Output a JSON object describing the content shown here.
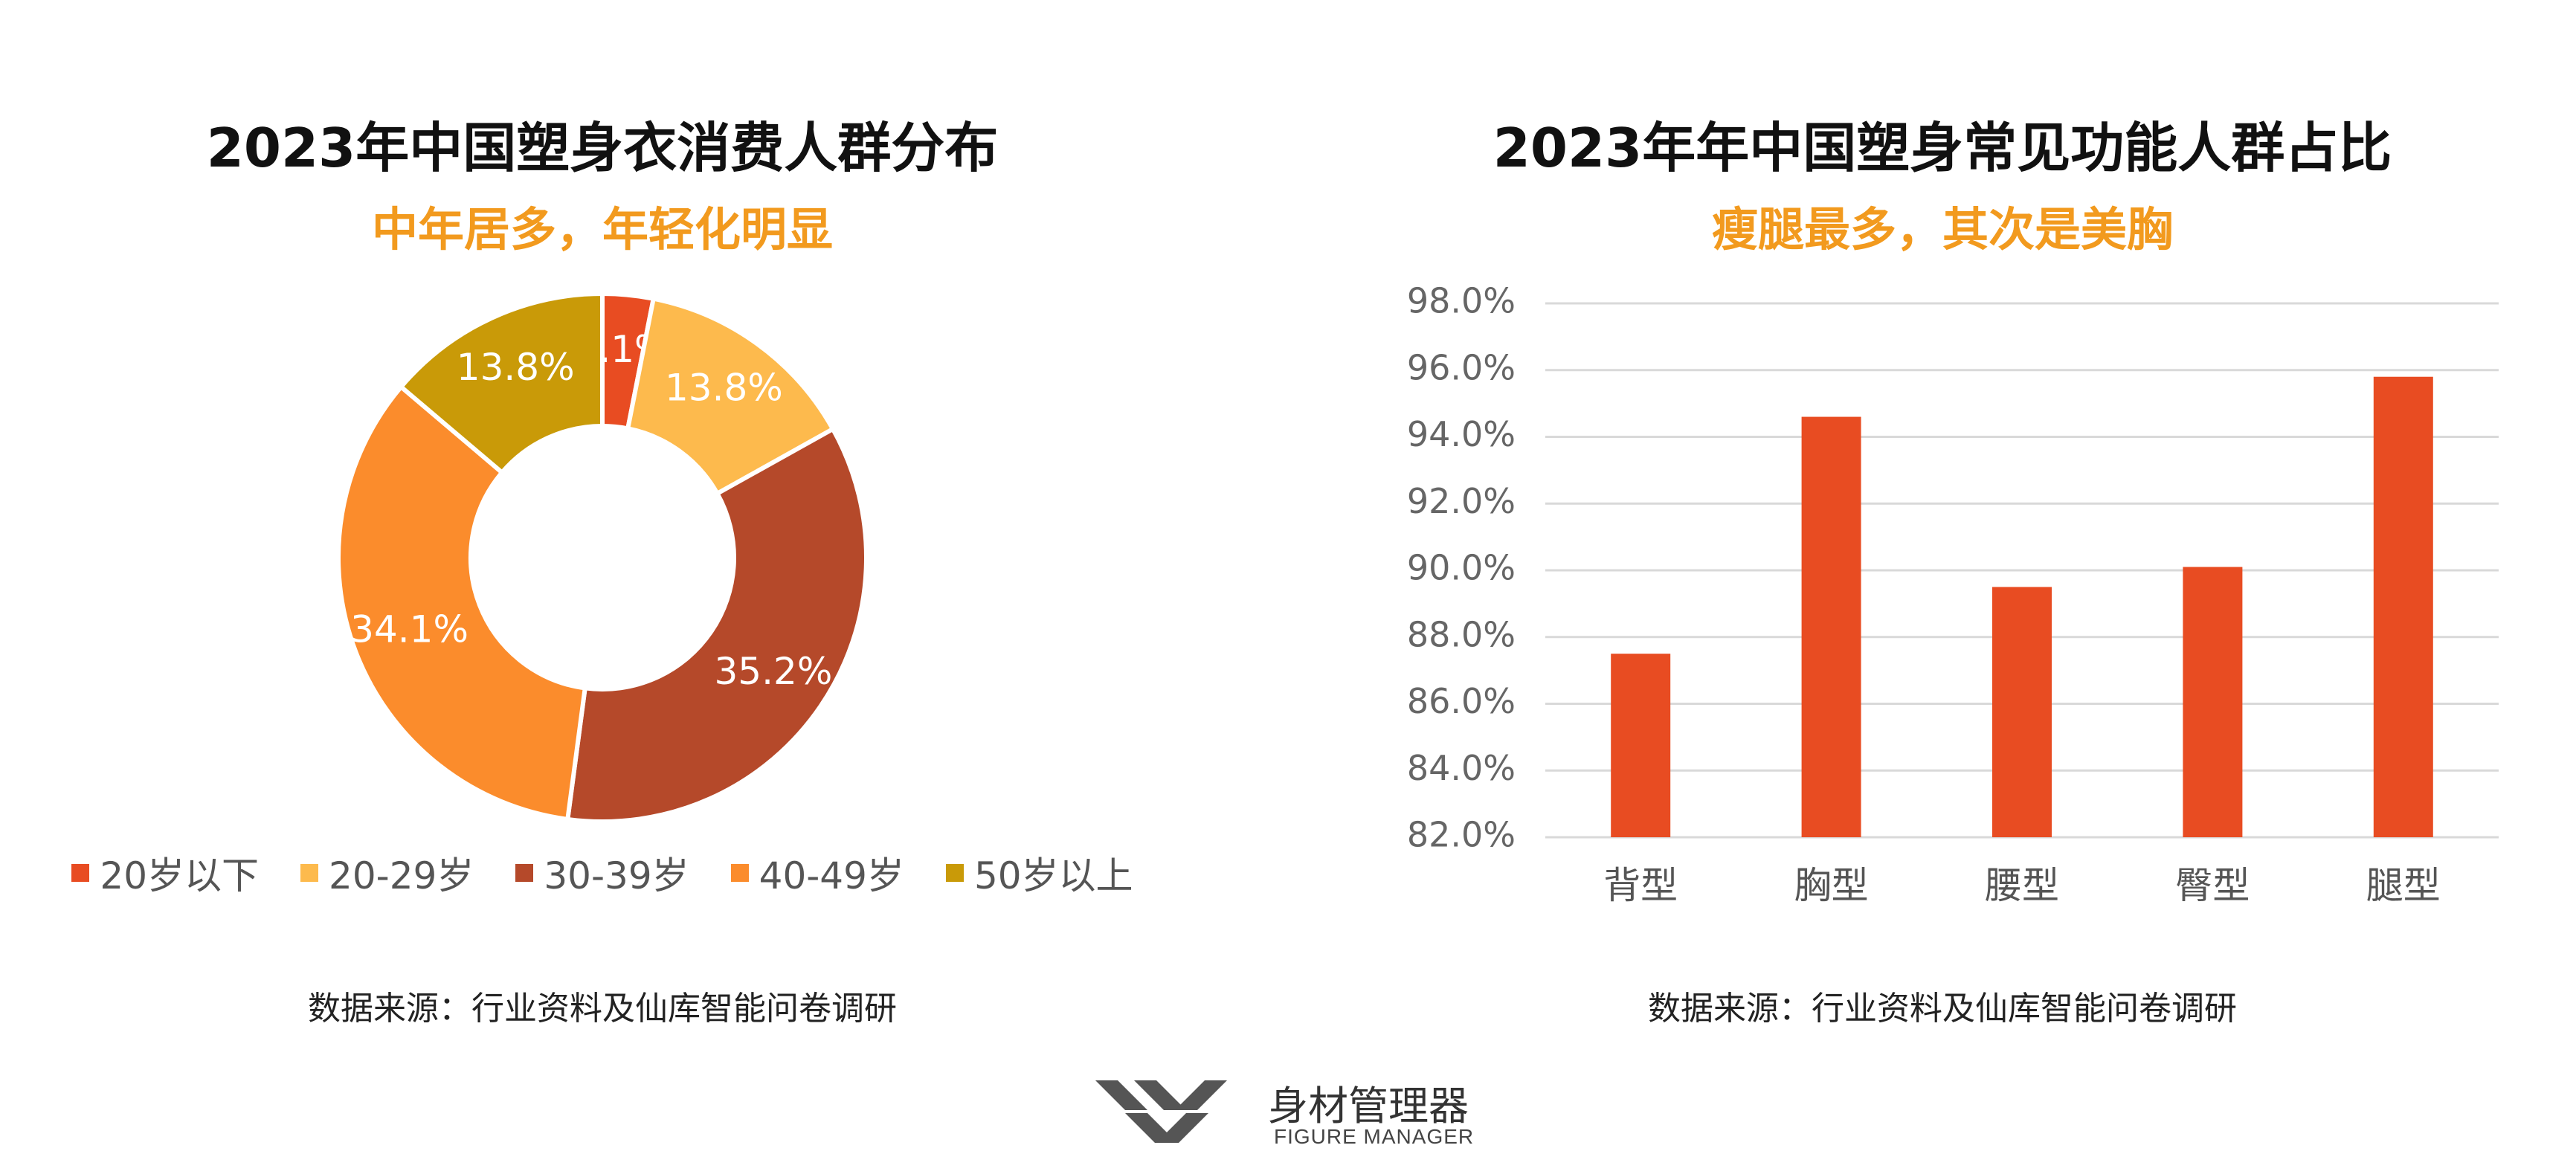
{
  "charts": {
    "left": {
      "title": "2023年中国塑身衣消费人群分布",
      "subtitle": "中年居多，年轻化明显",
      "source": "数据来源：行业资料及仙库智能问卷调研"
    },
    "right": {
      "title": "2023年年中国塑身常见功能人群占比",
      "subtitle": "瘦腿最多，其次是美胸",
      "source": "数据来源：行业资料及仙库智能问卷调研"
    }
  },
  "brand": {
    "name": "身材管理器",
    "sub": "FIGURE MANAGER"
  },
  "chart_data": [
    {
      "type": "pie",
      "title": "2023年中国塑身衣消费人群分布",
      "subtitle": "中年居多，年轻化明显",
      "donut": true,
      "categories": [
        "20岁以下",
        "20-29岁",
        "30-39岁",
        "40-49岁",
        "50岁以上"
      ],
      "values": [
        3.1,
        13.8,
        35.2,
        34.1,
        13.8
      ],
      "labels": [
        "3.1%",
        "13.8%",
        "35.2%",
        "34.1%",
        "13.8%"
      ],
      "colors": [
        "#E84C22",
        "#FDBA4D",
        "#B5492A",
        "#FB8C2C",
        "#C99A08"
      ],
      "legend": "bottom"
    },
    {
      "type": "bar",
      "title": "2023年年中国塑身常见功能人群占比",
      "subtitle": "瘦腿最多，其次是美胸",
      "categories": [
        "背型",
        "胸型",
        "腰型",
        "臀型",
        "腿型"
      ],
      "values": [
        87.5,
        94.6,
        89.5,
        90.1,
        95.8
      ],
      "ylim": [
        82,
        98
      ],
      "yticks": [
        "82.0%",
        "84.0%",
        "86.0%",
        "88.0%",
        "90.0%",
        "92.0%",
        "94.0%",
        "96.0%",
        "98.0%"
      ],
      "grid": true,
      "color": "#E84C22"
    }
  ]
}
